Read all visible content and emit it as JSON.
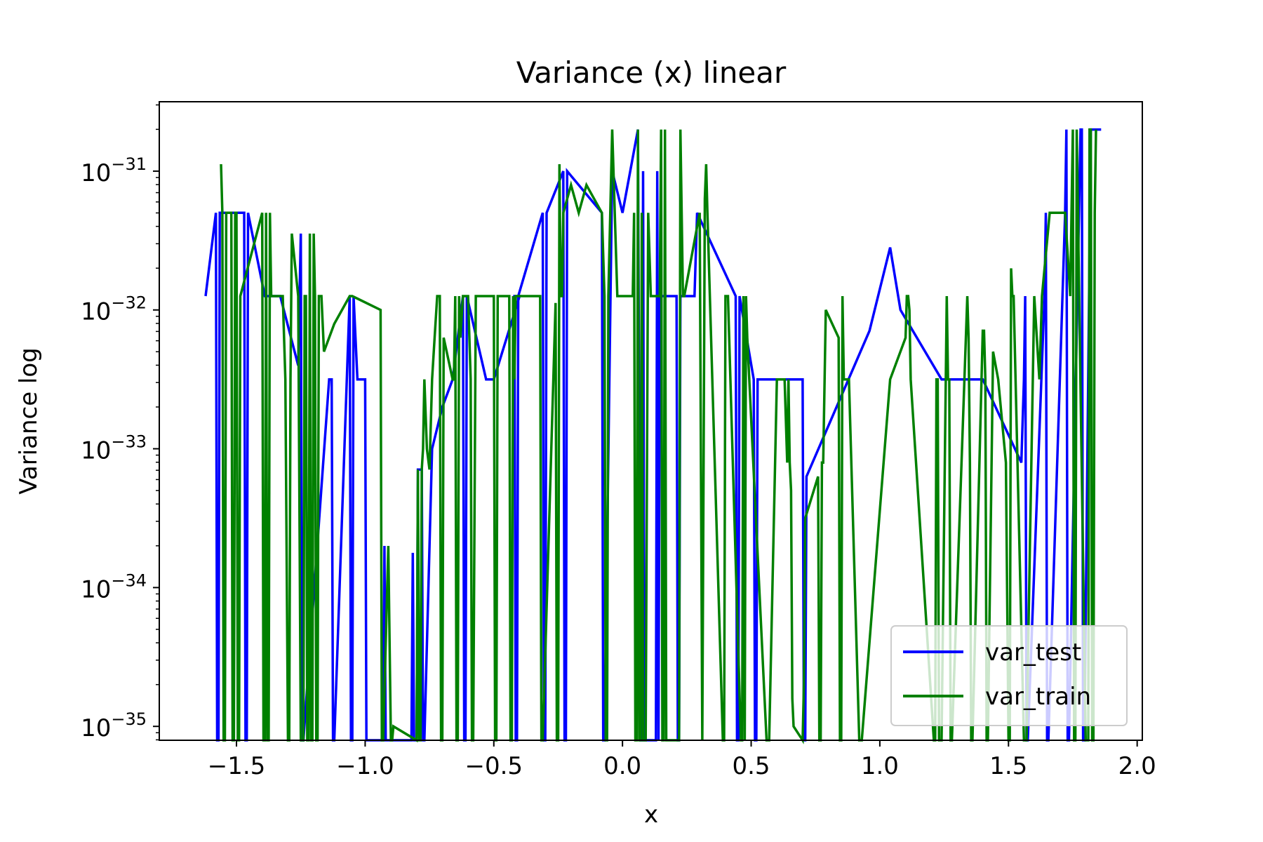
{
  "chart_data": {
    "type": "line",
    "title": "Variance (x) linear",
    "xlabel": "x",
    "ylabel": "Variance log",
    "yscale": "log",
    "xlim": [
      -1.8,
      2.02
    ],
    "ylim_exp": [
      -35.1,
      -30.5
    ],
    "xticks": [
      -1.5,
      -1.0,
      -0.5,
      0.0,
      0.5,
      1.0,
      1.5,
      2.0
    ],
    "xtick_labels": [
      "−1.5",
      "−1.0",
      "−0.5",
      "0.0",
      "0.5",
      "1.0",
      "1.5",
      "2.0"
    ],
    "yticks_exp": [
      -35,
      -34,
      -33,
      -32,
      -31
    ],
    "ytick_base": "10",
    "ytick_exponents": [
      "−35",
      "−34",
      "−33",
      "−32",
      "−31"
    ],
    "legend_position": "lower-right",
    "grid": false,
    "series": [
      {
        "name": "var_test",
        "color": "#0000ff",
        "points_x": [
          -1.62,
          -1.58,
          -1.575,
          -1.57,
          -1.565,
          -1.47,
          -1.465,
          -1.46,
          -1.455,
          -1.39,
          -1.33,
          -1.26,
          -1.25,
          -1.245,
          -1.24,
          -1.14,
          -1.13,
          -1.125,
          -1.12,
          -1.06,
          -1.055,
          -1.05,
          -1.045,
          -1.03,
          -1.0,
          -0.995,
          -0.93,
          -0.925,
          -0.92,
          -0.915,
          -0.82,
          -0.815,
          -0.81,
          -0.8,
          -0.795,
          -0.78,
          -0.775,
          -0.77,
          -0.74,
          -0.7,
          -0.66,
          -0.62,
          -0.615,
          -0.61,
          -0.605,
          -0.53,
          -0.52,
          -0.51,
          -0.5,
          -0.4,
          -0.42,
          -0.415,
          -0.41,
          -0.405,
          -0.31,
          -0.305,
          -0.3,
          -0.295,
          -0.23,
          -0.225,
          -0.22,
          -0.215,
          -0.08,
          -0.075,
          -0.07,
          -0.04,
          0.0,
          0.06,
          0.07,
          0.075,
          0.08,
          0.085,
          0.13,
          0.135,
          0.14,
          0.145,
          0.21,
          0.215,
          0.22,
          0.225,
          0.28,
          0.29,
          0.44,
          0.445,
          0.45,
          0.455,
          0.51,
          0.515,
          0.52,
          0.525,
          0.7,
          0.705,
          0.71,
          0.715,
          0.96,
          1.04,
          1.08,
          1.24,
          1.25,
          1.4,
          1.55,
          1.56,
          1.565,
          1.57,
          1.575,
          1.64,
          1.645,
          1.65,
          1.655,
          1.72,
          1.725,
          1.73,
          1.735,
          1.78,
          1.785,
          1.79,
          1.795,
          1.82,
          1.84,
          1.85,
          1.86
        ],
        "points_exp": [
          -31.9,
          -31.3,
          -35.1,
          -35.1,
          -31.3,
          -31.3,
          -35.1,
          -35.1,
          -31.3,
          -31.9,
          -31.9,
          -32.4,
          -31.45,
          -35.1,
          -35.1,
          -32.5,
          -32.5,
          -35.1,
          -35.1,
          -31.9,
          -35.1,
          -35.1,
          -31.9,
          -32.5,
          -32.5,
          -35.1,
          -35.1,
          -33.7,
          -35.1,
          -35.1,
          -35.1,
          -33.75,
          -35.1,
          -35.1,
          -33.15,
          -33.15,
          -35.1,
          -35.1,
          -33.0,
          -32.7,
          -32.5,
          -31.9,
          -35.1,
          -35.1,
          -31.9,
          -32.5,
          -32.5,
          -32.5,
          -32.5,
          -31.9,
          -31.9,
          -35.1,
          -35.1,
          -31.9,
          -31.3,
          -35.1,
          -35.1,
          -31.3,
          -31.0,
          -35.1,
          -35.1,
          -31.0,
          -31.3,
          -35.1,
          -35.1,
          -31.0,
          -31.3,
          -30.7,
          -35.1,
          -35.1,
          -31.0,
          -35.1,
          -35.1,
          -31.0,
          -35.1,
          -31.9,
          -31.9,
          -35.1,
          -35.1,
          -31.9,
          -31.9,
          -31.3,
          -31.9,
          -35.1,
          -35.1,
          -31.9,
          -32.5,
          -35.1,
          -35.1,
          -32.5,
          -32.5,
          -35.1,
          -35.1,
          -33.2,
          -32.15,
          -31.55,
          -32.0,
          -32.5,
          -32.5,
          -32.5,
          -33.1,
          -32.5,
          -31.9,
          -35.1,
          -35.1,
          -31.9,
          -31.3,
          -35.1,
          -35.1,
          -31.3,
          -30.7,
          -35.1,
          -35.1,
          -30.7,
          -30.7,
          -35.1,
          -35.1,
          -30.7,
          -30.7,
          -30.7,
          -30.7,
          -30.7
        ]
      },
      {
        "name": "var_train",
        "color": "#008000",
        "points_x": [
          -1.56,
          -1.555,
          -1.55,
          -1.545,
          -1.54,
          -1.52,
          -1.515,
          -1.51,
          -1.505,
          -1.5,
          -1.495,
          -1.49,
          -1.485,
          -1.4,
          -1.395,
          -1.39,
          -1.385,
          -1.38,
          -1.375,
          -1.37,
          -1.365,
          -1.32,
          -1.31,
          -1.3,
          -1.295,
          -1.29,
          -1.285,
          -1.26,
          -1.25,
          -1.24,
          -1.235,
          -1.23,
          -1.225,
          -1.22,
          -1.215,
          -1.21,
          -1.205,
          -1.2,
          -1.195,
          -1.19,
          -1.185,
          -1.18,
          -1.17,
          -1.16,
          -1.12,
          -1.06,
          -1.05,
          -0.94,
          -0.935,
          -0.93,
          -0.91,
          -0.9,
          -0.895,
          -0.89,
          -0.8,
          -0.795,
          -0.79,
          -0.785,
          -0.78,
          -0.775,
          -0.77,
          -0.76,
          -0.75,
          -0.74,
          -0.73,
          -0.72,
          -0.71,
          -0.705,
          -0.7,
          -0.695,
          -0.66,
          -0.655,
          -0.65,
          -0.645,
          -0.64,
          -0.635,
          -0.63,
          -0.62,
          -0.6,
          -0.59,
          -0.585,
          -0.58,
          -0.57,
          -0.55,
          -0.5,
          -0.495,
          -0.49,
          -0.485,
          -0.44,
          -0.435,
          -0.43,
          -0.425,
          -0.42,
          -0.415,
          -0.41,
          -0.32,
          -0.315,
          -0.31,
          -0.26,
          -0.255,
          -0.25,
          -0.245,
          -0.24,
          -0.235,
          -0.23,
          -0.2,
          -0.17,
          -0.14,
          -0.08,
          -0.07,
          -0.065,
          -0.06,
          -0.055,
          -0.04,
          -0.02,
          0.0,
          0.02,
          0.04,
          0.045,
          0.05,
          0.055,
          0.06,
          0.065,
          0.07,
          0.075,
          0.08,
          0.09,
          0.1,
          0.11,
          0.12,
          0.13,
          0.14,
          0.145,
          0.15,
          0.155,
          0.16,
          0.165,
          0.17,
          0.22,
          0.225,
          0.23,
          0.235,
          0.24,
          0.3,
          0.31,
          0.32,
          0.325,
          0.33,
          0.39,
          0.395,
          0.4,
          0.405,
          0.41,
          0.46,
          0.465,
          0.47,
          0.475,
          0.48,
          0.485,
          0.56,
          0.57,
          0.6,
          0.63,
          0.64,
          0.645,
          0.65,
          0.655,
          0.66,
          0.665,
          0.7,
          0.705,
          0.71,
          0.76,
          0.765,
          0.77,
          0.775,
          0.78,
          0.79,
          0.84,
          0.845,
          0.85,
          0.855,
          0.86,
          0.88,
          0.92,
          0.93,
          1.04,
          1.1,
          1.105,
          1.11,
          1.115,
          1.12,
          1.21,
          1.215,
          1.22,
          1.225,
          1.23,
          1.24,
          1.26,
          1.265,
          1.27,
          1.275,
          1.28,
          1.34,
          1.345,
          1.35,
          1.355,
          1.36,
          1.4,
          1.405,
          1.41,
          1.415,
          1.42,
          1.44,
          1.46,
          1.49,
          1.5,
          1.505,
          1.51,
          1.515,
          1.52,
          1.56,
          1.57,
          1.6,
          1.62,
          1.63,
          1.66,
          1.72,
          1.74,
          1.745,
          1.75,
          1.755,
          1.76,
          1.765,
          1.77,
          1.8,
          1.81,
          1.815,
          1.82,
          1.825,
          1.83,
          1.835,
          1.84
        ],
        "points_exp": [
          -30.95,
          -31.3,
          -35.1,
          -35.1,
          -31.3,
          -31.3,
          -35.1,
          -35.1,
          -31.3,
          -31.3,
          -35.1,
          -35.1,
          -31.9,
          -31.3,
          -35.1,
          -35.1,
          -31.3,
          -35.1,
          -35.1,
          -31.3,
          -31.9,
          -31.9,
          -32.5,
          -35.1,
          -35.1,
          -32.5,
          -31.45,
          -31.9,
          -35.1,
          -35.1,
          -31.9,
          -31.9,
          -35.1,
          -35.1,
          -31.45,
          -35.1,
          -35.1,
          -31.45,
          -31.9,
          -35.1,
          -35.1,
          -31.9,
          -31.9,
          -32.3,
          -32.1,
          -31.9,
          -31.9,
          -32.0,
          -35.1,
          -35.1,
          -33.7,
          -35.1,
          -35.1,
          -35.0,
          -35.1,
          -33.15,
          -35.1,
          -35.1,
          -33.15,
          -33.0,
          -32.5,
          -33.0,
          -33.15,
          -32.5,
          -32.2,
          -31.9,
          -31.9,
          -35.1,
          -35.1,
          -32.2,
          -32.5,
          -32.5,
          -31.9,
          -35.1,
          -35.1,
          -31.9,
          -32.2,
          -31.9,
          -31.9,
          -32.5,
          -35.1,
          -35.1,
          -31.9,
          -31.9,
          -31.9,
          -35.1,
          -35.1,
          -31.9,
          -31.9,
          -35.1,
          -35.1,
          -31.9,
          -32.5,
          -31.9,
          -31.9,
          -31.9,
          -35.1,
          -35.1,
          -31.95,
          -35.1,
          -35.1,
          -30.95,
          -31.9,
          -31.9,
          -31.3,
          -31.1,
          -31.3,
          -31.1,
          -31.3,
          -31.9,
          -35.1,
          -35.1,
          -31.9,
          -30.7,
          -31.9,
          -31.9,
          -31.9,
          -31.9,
          -31.3,
          -35.1,
          -35.1,
          -30.7,
          -35.1,
          -35.1,
          -31.3,
          -35.1,
          -35.1,
          -31.3,
          -31.9,
          -31.9,
          -31.9,
          -31.9,
          -31.9,
          -30.7,
          -35.1,
          -35.1,
          -30.7,
          -35.1,
          -35.1,
          -30.7,
          -31.3,
          -31.9,
          -31.9,
          -31.3,
          -35.1,
          -31.2,
          -30.95,
          -31.3,
          -35.1,
          -35.1,
          -31.9,
          -31.9,
          -31.9,
          -35.1,
          -35.1,
          -31.9,
          -35.1,
          -31.9,
          -32.2,
          -35.1,
          -35.1,
          -32.5,
          -32.5,
          -33.1,
          -32.5,
          -33.1,
          -33.3,
          -34.8,
          -35.0,
          -35.1,
          -34.7,
          -33.5,
          -33.2,
          -35.1,
          -35.1,
          -33.1,
          -33.1,
          -32.0,
          -32.2,
          -35.1,
          -35.1,
          -31.9,
          -32.5,
          -32.5,
          -35.1,
          -35.1,
          -32.5,
          -32.2,
          -31.9,
          -31.9,
          -32.0,
          -32.5,
          -35.1,
          -35.1,
          -32.5,
          -32.5,
          -35.1,
          -35.1,
          -31.9,
          -32.5,
          -32.5,
          -35.1,
          -35.1,
          -31.9,
          -32.2,
          -33.1,
          -35.1,
          -35.1,
          -32.15,
          -32.15,
          -32.5,
          -35.1,
          -35.1,
          -32.3,
          -32.5,
          -33.1,
          -35.1,
          -35.1,
          -31.7,
          -31.9,
          -31.9,
          -35.1,
          -35.1,
          -31.9,
          -32.5,
          -31.9,
          -31.3,
          -31.3,
          -31.9,
          -31.3,
          -30.7,
          -35.1,
          -35.1,
          -30.7,
          -31.3,
          -35.1,
          -35.1,
          -30.7,
          -30.7,
          -35.1,
          -35.1,
          -31.3,
          -30.7,
          -30.7,
          -30.7,
          -31.3
        ]
      }
    ]
  }
}
